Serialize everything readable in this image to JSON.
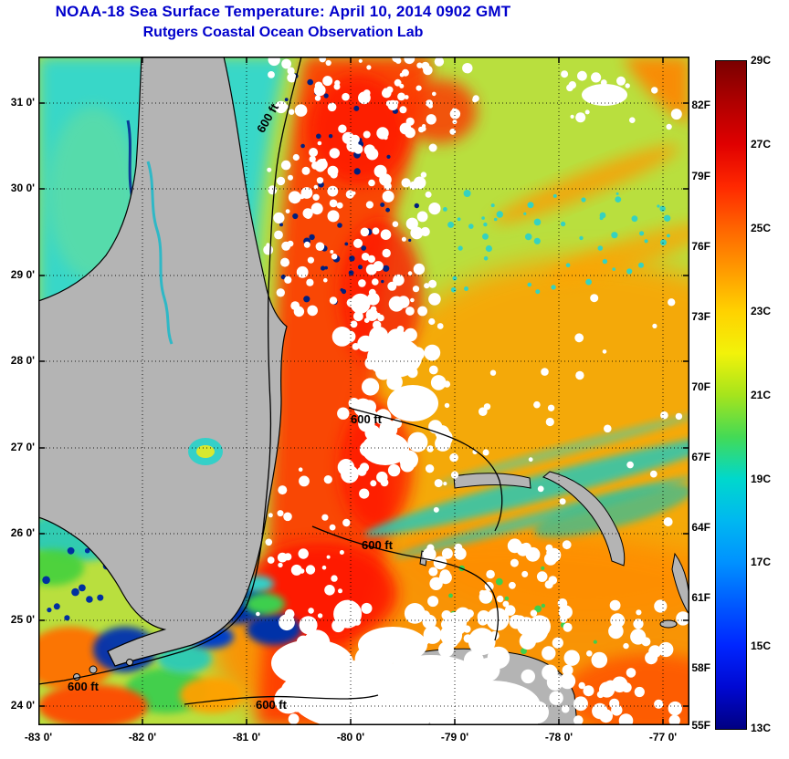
{
  "header": {
    "title": "NOAA-18 Sea Surface Temperature:  April 10, 2014 0902 GMT",
    "subtitle": "Rutgers Coastal Ocean Observation Lab",
    "title_color": "#0000cc"
  },
  "map": {
    "y_tick_labels": [
      "31 0'",
      "30 0'",
      "29 0'",
      "28 0'",
      "27 0'",
      "26 0'",
      "25 0'",
      "24 0'"
    ],
    "x_tick_labels": [
      "-83 0'",
      "-82 0'",
      "-81 0'",
      "-80 0'",
      "-79 0'",
      "-78 0'",
      "-77 0'"
    ],
    "contour_labels": [
      "600 ft",
      "600 ft",
      "600 ft",
      "600 ft",
      "600 ft"
    ],
    "land_color": "#b4b4b4",
    "cloud_color": "#ffffff"
  },
  "colorbar": {
    "min_c": 13,
    "max_c": 29,
    "celsius_labels": [
      "29C",
      "27C",
      "25C",
      "23C",
      "21C",
      "19C",
      "17C",
      "15C",
      "13C"
    ],
    "fahrenheit_labels": [
      "82F",
      "79F",
      "76F",
      "73F",
      "70F",
      "67F",
      "64F",
      "61F",
      "58F",
      "55F"
    ],
    "stops": [
      "#7a0000",
      "#b00000",
      "#e00000",
      "#ff2800",
      "#ff6400",
      "#ff9a00",
      "#ffd200",
      "#f2f20a",
      "#a6e41c",
      "#44da55",
      "#00d8cc",
      "#00b8f0",
      "#0092ff",
      "#005aff",
      "#0026ff",
      "#0008d2",
      "#000082"
    ]
  }
}
